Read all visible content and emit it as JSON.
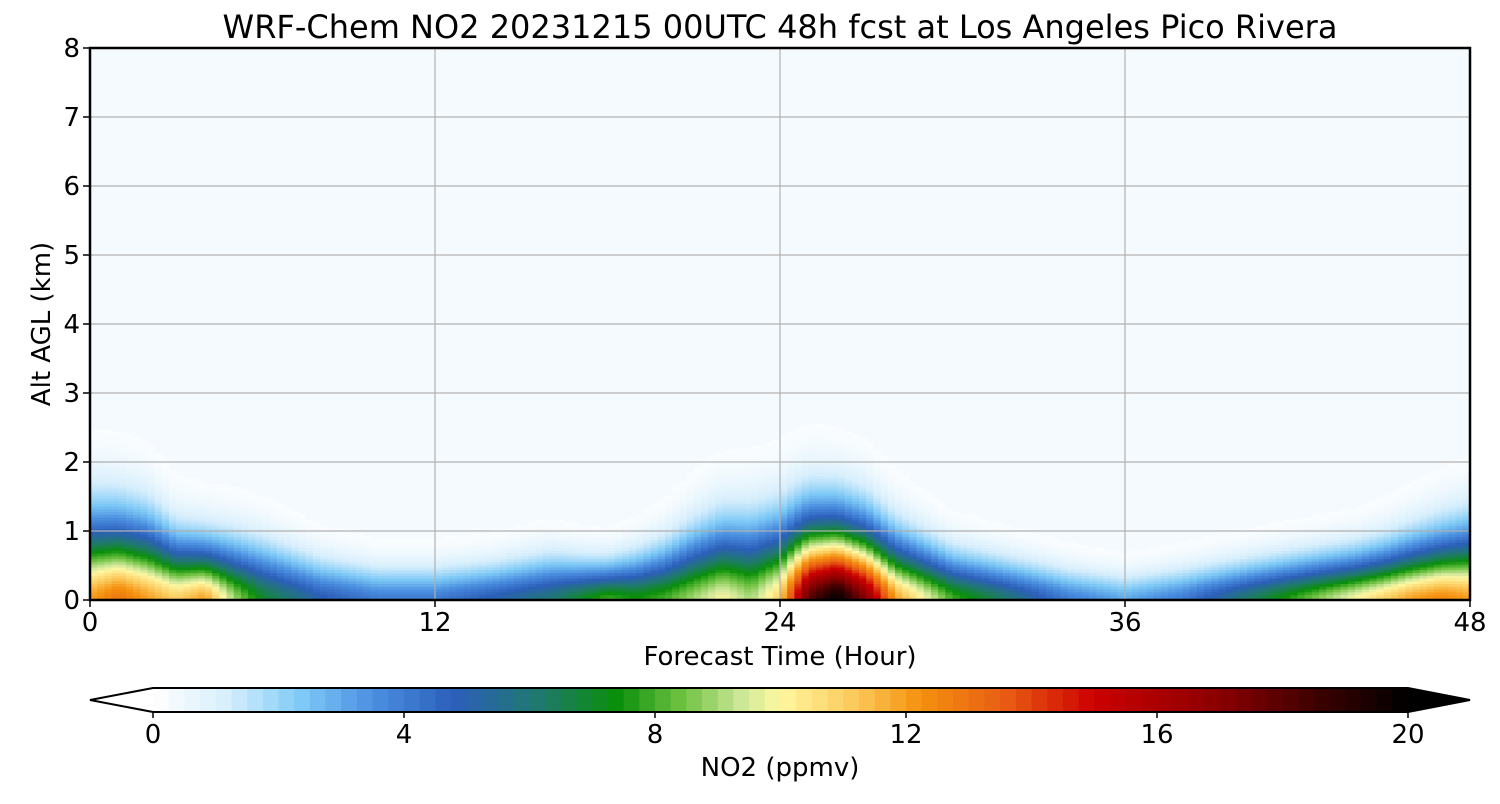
{
  "chart_data": {
    "type": "heatmap",
    "title": "WRF-Chem NO2  20231215 00UTC 48h fcst at Los Angeles Pico Rivera",
    "xlabel": "Forecast Time (Hour)",
    "ylabel": "Alt AGL (km)",
    "xlim": [
      0,
      48
    ],
    "ylim": [
      0,
      8
    ],
    "xticks": [
      "0",
      "12",
      "24",
      "36",
      "48"
    ],
    "yticks": [
      "0",
      "1",
      "2",
      "3",
      "4",
      "5",
      "6",
      "7",
      "8"
    ],
    "grid": true,
    "colorbar": {
      "label": "NO2  (ppmv)",
      "min": 0,
      "max": 20,
      "ticks": [
        "0",
        "4",
        "8",
        "12",
        "16",
        "20"
      ],
      "extend": "both",
      "stops": [
        {
          "v": 0,
          "c": "#ffffff"
        },
        {
          "v": 1.2,
          "c": "#d6eefc"
        },
        {
          "v": 2.4,
          "c": "#7cc8f6"
        },
        {
          "v": 3.5,
          "c": "#4b8fe0"
        },
        {
          "v": 4.8,
          "c": "#2c5fba"
        },
        {
          "v": 6.2,
          "c": "#1f7a6a"
        },
        {
          "v": 7.4,
          "c": "#0a8f0a"
        },
        {
          "v": 8.4,
          "c": "#6cc040"
        },
        {
          "v": 9.4,
          "c": "#cfe89a"
        },
        {
          "v": 10.0,
          "c": "#fff7a0"
        },
        {
          "v": 11.2,
          "c": "#fbc85a"
        },
        {
          "v": 12.2,
          "c": "#f59210"
        },
        {
          "v": 13.6,
          "c": "#e85c14"
        },
        {
          "v": 15.0,
          "c": "#cc0000"
        },
        {
          "v": 17.0,
          "c": "#8a0000"
        },
        {
          "v": 18.6,
          "c": "#3a0000"
        },
        {
          "v": 20.0,
          "c": "#000000"
        }
      ]
    },
    "field": {
      "description_hours": [
        0,
        1,
        2,
        3,
        4,
        5,
        6,
        8,
        10,
        12,
        14,
        16,
        17,
        18,
        19,
        20,
        21,
        22,
        23,
        24,
        25,
        26,
        27,
        28,
        29,
        30,
        32,
        34,
        36,
        38,
        40,
        42,
        44,
        45,
        46,
        47,
        48
      ],
      "surface_ppmv": [
        12,
        13,
        12,
        11,
        12,
        9,
        7,
        5,
        4,
        4,
        5,
        6,
        7,
        8,
        7.5,
        8,
        9,
        10,
        9,
        11,
        18,
        20,
        17,
        12,
        10,
        8,
        6,
        4,
        3,
        4,
        6,
        8,
        10,
        11,
        12,
        12.5,
        12
      ],
      "mix_depth_km": [
        1.9,
        1.85,
        1.75,
        1.4,
        1.3,
        1.3,
        1.25,
        0.95,
        0.8,
        0.8,
        0.85,
        1.0,
        0.9,
        0.85,
        1.0,
        1.2,
        1.5,
        1.7,
        1.75,
        1.8,
        1.85,
        1.8,
        1.7,
        1.45,
        1.25,
        1.05,
        0.9,
        0.75,
        0.65,
        0.75,
        0.85,
        0.95,
        1.05,
        1.15,
        1.3,
        1.45,
        1.6
      ]
    }
  }
}
